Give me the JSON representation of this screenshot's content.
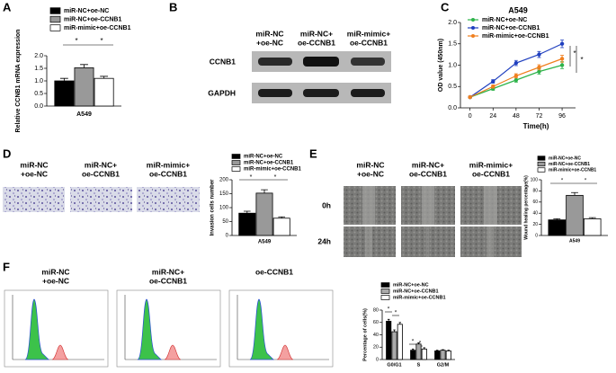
{
  "panels": {
    "labels": [
      "A",
      "B",
      "C",
      "D",
      "E",
      "F"
    ]
  },
  "blot": {
    "headers": [
      [
        "miR-NC",
        "+oe-NC"
      ],
      [
        "miR-NC+",
        "oe-CCNB1"
      ],
      [
        "miR-mimic+",
        "oe-CCNB1"
      ]
    ],
    "rows": [
      "CCNB1",
      "GAPDH"
    ]
  },
  "invasion": {
    "headers": [
      [
        "miR-NC",
        "+oe-NC"
      ],
      [
        "miR-NC+",
        "oe-CCNB1"
      ],
      [
        "miR-mimic+",
        "oe-CCNB1"
      ]
    ]
  },
  "wound": {
    "headers": [
      [
        "miR-NC",
        "+oe-NC"
      ],
      [
        "miR-NC+",
        "oe-CCNB1"
      ],
      [
        "miR-mimic+",
        "oe-CCNB1"
      ]
    ],
    "rows": [
      "0h",
      "24h"
    ]
  },
  "cytometry": {
    "headers": [
      [
        "miR-NC",
        "+oe-NC"
      ],
      [
        "miR-NC+",
        "oe-CCNB1"
      ],
      [
        "oe-CCNB1"
      ]
    ]
  },
  "chart_data": [
    {
      "type": "bar",
      "ylabel": "Relative CCNB1 mRNA expression",
      "categories": [
        "A549"
      ],
      "ylim": [
        0,
        2
      ],
      "yticks": [
        {
          "value": 0,
          "label": "0.0"
        },
        {
          "value": 0.5,
          "label": "0.5"
        },
        {
          "value": 1,
          "label": "1.0"
        },
        {
          "value": 1.5,
          "label": "1.5"
        },
        {
          "value": 2,
          "label": "2.0"
        }
      ],
      "series": [
        {
          "name": "miR-NC+oe-NC",
          "color": "#000000",
          "values": [
            1.0
          ],
          "errors": [
            0.1
          ]
        },
        {
          "name": "miR-NC+oe-CCNB1",
          "color": "#999999",
          "values": [
            1.52
          ],
          "errors": [
            0.13
          ]
        },
        {
          "name": "miR-mimic+oe-CCNB1",
          "color": "#ffffff",
          "values": [
            1.1
          ],
          "errors": [
            0.08
          ]
        }
      ],
      "annotations": [
        "*",
        "*"
      ]
    },
    {
      "type": "line",
      "title": "A549",
      "xlabel": "Time(h)",
      "ylabel": "OD value (450nm)",
      "x": [
        0,
        24,
        48,
        72,
        96
      ],
      "xlim": [
        -10,
        110
      ],
      "xticks": [
        0,
        24,
        48,
        72,
        96
      ],
      "ylim": [
        0,
        2
      ],
      "yticks": [
        {
          "value": 0,
          "label": "0.0"
        },
        {
          "value": 0.5,
          "label": "0.5"
        },
        {
          "value": 1,
          "label": "1.0"
        },
        {
          "value": 1.5,
          "label": "1.5"
        },
        {
          "value": 2,
          "label": "2.0"
        }
      ],
      "series": [
        {
          "name": "miR-NC+oe-NC",
          "color": "#2db34a",
          "values": [
            0.25,
            0.45,
            0.65,
            0.85,
            1.0
          ],
          "errors": [
            0.02,
            0.04,
            0.05,
            0.06,
            0.08
          ]
        },
        {
          "name": "miR-NC+oe-CCNB1",
          "color": "#1f3fbf",
          "values": [
            0.25,
            0.62,
            1.05,
            1.25,
            1.5
          ],
          "errors": [
            0.02,
            0.04,
            0.06,
            0.07,
            0.09
          ]
        },
        {
          "name": "miR-mimic+oe-CCNB1",
          "color": "#f07f1e",
          "values": [
            0.25,
            0.5,
            0.75,
            0.95,
            1.15
          ],
          "errors": [
            0.02,
            0.04,
            0.05,
            0.06,
            0.08
          ]
        }
      ],
      "annotations": [
        "*",
        "*"
      ]
    },
    {
      "type": "bar",
      "ylabel": "Invasion cells number",
      "categories": [
        "A549"
      ],
      "ylim": [
        0,
        200
      ],
      "yticks": [
        0,
        50,
        100,
        150,
        200
      ],
      "series": [
        {
          "name": "miR-NC+oe-NC",
          "color": "#000000",
          "values": [
            80
          ],
          "errors": [
            7
          ]
        },
        {
          "name": "miR-NC+oe-CCNB1",
          "color": "#999999",
          "values": [
            152
          ],
          "errors": [
            12
          ]
        },
        {
          "name": "miR-mimic+oe-CCNB1",
          "color": "#ffffff",
          "values": [
            62
          ],
          "errors": [
            5
          ]
        }
      ],
      "annotations": [
        "*",
        "*"
      ]
    },
    {
      "type": "bar",
      "ylabel": "Wound healing percentage(%)",
      "categories": [
        "A549"
      ],
      "ylim": [
        0,
        100
      ],
      "yticks": [
        0,
        20,
        40,
        60,
        80,
        100
      ],
      "series": [
        {
          "name": "miR-NC+oe-NC",
          "color": "#000000",
          "values": [
            28
          ],
          "errors": [
            2
          ]
        },
        {
          "name": "miR-NC+oe-CCNB1",
          "color": "#999999",
          "values": [
            72
          ],
          "errors": [
            5
          ]
        },
        {
          "name": "miR-mimic+oe-CCNB1",
          "color": "#ffffff",
          "values": [
            30
          ],
          "errors": [
            2
          ]
        }
      ],
      "annotations": [
        "*",
        "*"
      ]
    },
    {
      "type": "bar",
      "ylabel": "Percentage of cells(%)",
      "categories": [
        "G0/G1",
        "S",
        "G2/M"
      ],
      "ylim": [
        0,
        80
      ],
      "yticks": [
        0,
        20,
        40,
        60,
        80
      ],
      "series": [
        {
          "name": "miR-NC+oe-NC",
          "color": "#000000",
          "values": [
            62,
            15,
            14
          ],
          "errors": [
            3,
            2,
            1
          ]
        },
        {
          "name": "miR-NC+oe-CCNB1",
          "color": "#aaaaaa",
          "values": [
            45,
            25,
            15
          ],
          "errors": [
            3,
            2,
            1
          ]
        },
        {
          "name": "miR-mimic+oe-CCNB1",
          "color": "#ffffff",
          "values": [
            57,
            17,
            14
          ],
          "errors": [
            3,
            2,
            1
          ]
        }
      ],
      "annotations": [
        "*",
        "*",
        "*",
        "*"
      ]
    }
  ]
}
